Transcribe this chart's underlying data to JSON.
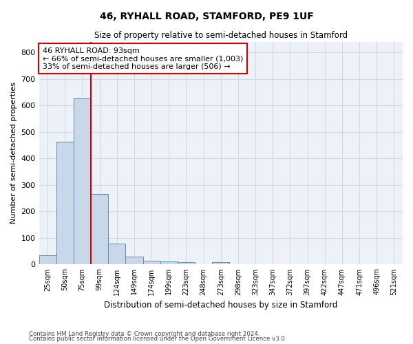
{
  "title1": "46, RYHALL ROAD, STAMFORD, PE9 1UF",
  "title2": "Size of property relative to semi-detached houses in Stamford",
  "xlabel": "Distribution of semi-detached houses by size in Stamford",
  "ylabel": "Number of semi-detached properties",
  "footer1": "Contains HM Land Registry data © Crown copyright and database right 2024.",
  "footer2": "Contains public sector information licensed under the Open Government Licence v3.0.",
  "annotation_line1": "46 RYHALL ROAD: 93sqm",
  "annotation_line2": "← 66% of semi-detached houses are smaller (1,003)",
  "annotation_line3": "33% of semi-detached houses are larger (506) →",
  "bar_labels": [
    "25sqm",
    "50sqm",
    "75sqm",
    "99sqm",
    "124sqm",
    "149sqm",
    "174sqm",
    "199sqm",
    "223sqm",
    "248sqm",
    "273sqm",
    "298sqm",
    "323sqm",
    "347sqm",
    "372sqm",
    "397sqm",
    "422sqm",
    "447sqm",
    "471sqm",
    "496sqm",
    "521sqm"
  ],
  "bar_values": [
    35,
    462,
    625,
    265,
    80,
    30,
    13,
    12,
    10,
    0,
    8,
    0,
    0,
    0,
    0,
    0,
    0,
    0,
    0,
    0,
    0
  ],
  "bar_color": "#c8d8e8",
  "bar_edge_color": "#6090b0",
  "grid_color": "#d0d8e8",
  "bg_color": "#eef2f8",
  "property_line_x": 2.5,
  "property_line_color": "#cc0000",
  "annotation_box_color": "#cc0000",
  "ylim": [
    0,
    840
  ],
  "yticks": [
    0,
    100,
    200,
    300,
    400,
    500,
    600,
    700,
    800
  ]
}
